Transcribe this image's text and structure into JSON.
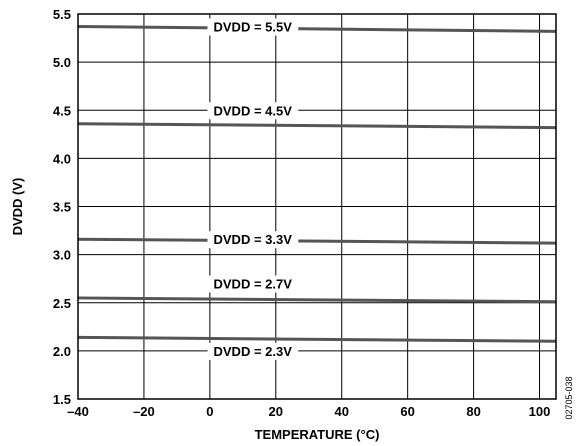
{
  "chart_data": {
    "type": "line",
    "xlabel": "TEMPERATURE (°C)",
    "ylabel": "DVDD (V)",
    "xlim": [
      -40,
      105
    ],
    "ylim": [
      1.5,
      5.5
    ],
    "x_ticks": [
      -40,
      -20,
      0,
      20,
      40,
      60,
      80,
      100
    ],
    "x_tick_labels": [
      "–40",
      "–20",
      "0",
      "20",
      "40",
      "60",
      "80",
      "100"
    ],
    "y_ticks": [
      1.5,
      2.0,
      2.5,
      3.0,
      3.5,
      4.0,
      4.5,
      5.0,
      5.5
    ],
    "y_tick_labels": [
      "1.5",
      "2.0",
      "2.5",
      "3.0",
      "3.5",
      "4.0",
      "4.5",
      "5.0",
      "5.5"
    ],
    "grid": true,
    "line_color": "#555555",
    "series": [
      {
        "name": "DVDD = 5.5V",
        "x": [
          -40,
          105
        ],
        "y": [
          5.37,
          5.32
        ],
        "label_x": 13,
        "label_y": 5.37
      },
      {
        "name": "DVDD = 4.5V",
        "x": [
          -40,
          105
        ],
        "y": [
          4.36,
          4.32
        ],
        "label_x": 13,
        "label_y": 4.5
      },
      {
        "name": "DVDD = 3.3V",
        "x": [
          -40,
          105
        ],
        "y": [
          3.16,
          3.12
        ],
        "label_x": 13,
        "label_y": 3.16
      },
      {
        "name": "DVDD = 2.7V",
        "x": [
          -40,
          105
        ],
        "y": [
          2.55,
          2.51
        ],
        "label_x": 13,
        "label_y": 2.7
      },
      {
        "name": "DVDD = 2.3V",
        "x": [
          -40,
          105
        ],
        "y": [
          2.14,
          2.1
        ],
        "label_x": 13,
        "label_y": 2.0
      }
    ]
  },
  "figure_id": "02705-038"
}
